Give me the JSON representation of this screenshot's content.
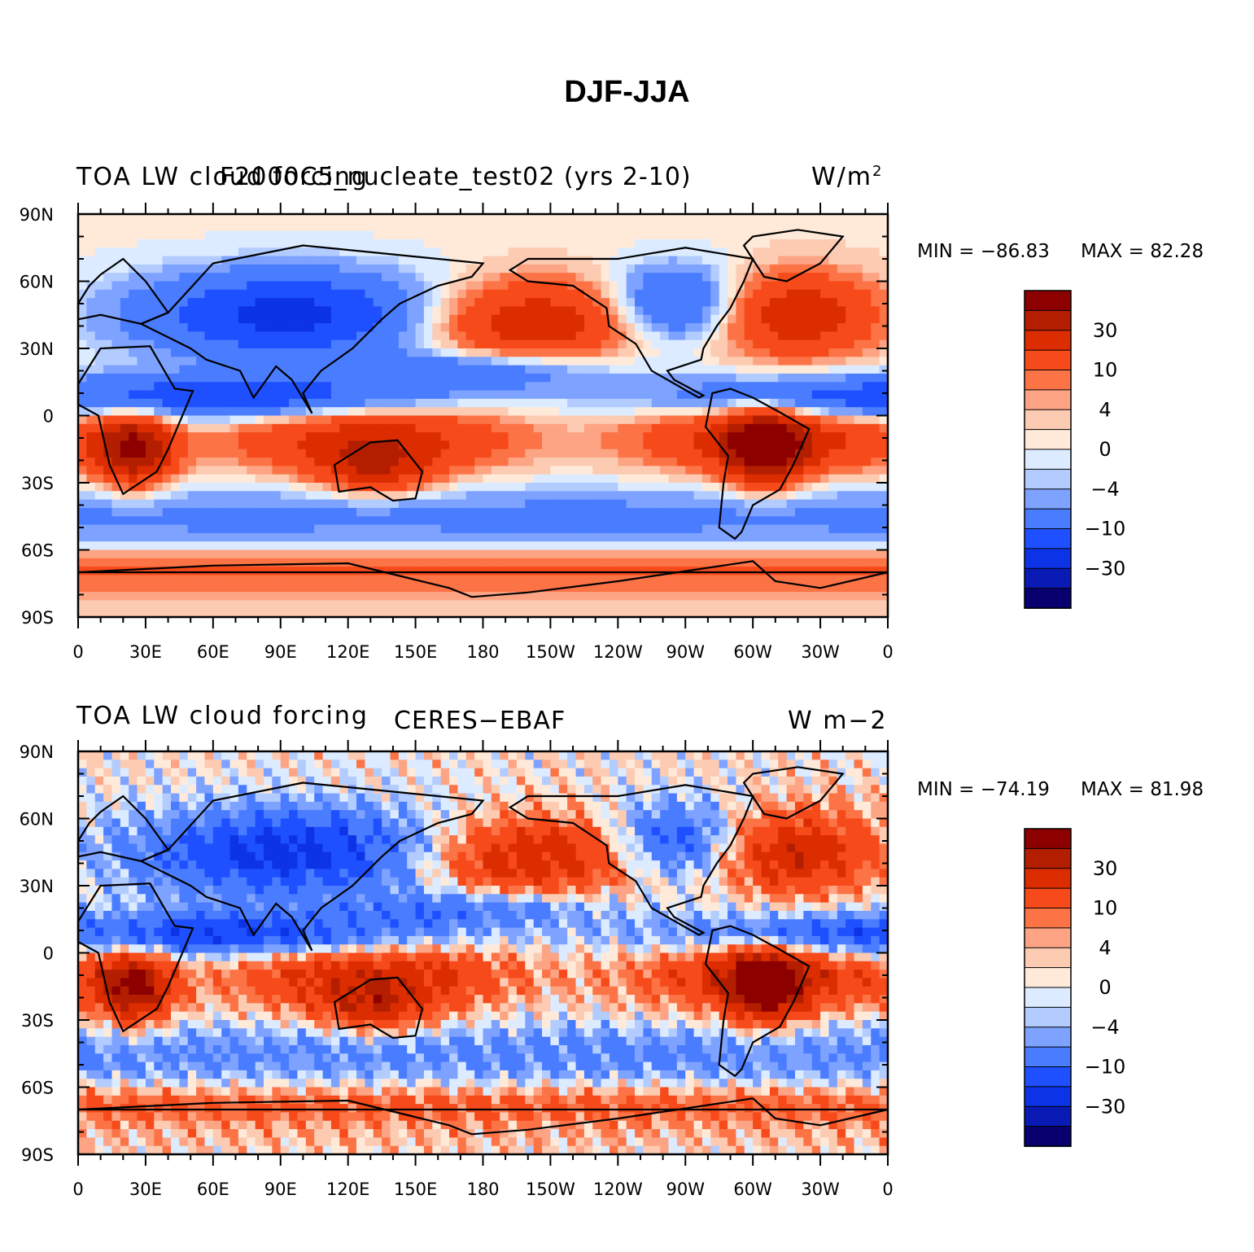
{
  "page_title": "DJF-JJA",
  "colors": {
    "levels": [
      "#08006e",
      "#0a1ab4",
      "#0c33e6",
      "#1e50ff",
      "#4a7cff",
      "#7ea2ff",
      "#b2ccff",
      "#dcebff",
      "#ffeada",
      "#fccbb2",
      "#fca484",
      "#fc7346",
      "#f64a1a",
      "#dc2d00",
      "#b41e00",
      "#8c0000"
    ],
    "coast": "#000000"
  },
  "chart_data": [
    {
      "type": "heatmap",
      "panel": "top",
      "left_string": "TOA LW cloud forcing",
      "center_string": "F2000C5_nucleate_test02 (yrs 2-10)",
      "right_string": "W/m",
      "right_superscript": "2",
      "min_label": "MIN = −86.83",
      "max_label": "MAX =  82.28",
      "min": -86.83,
      "max": 82.28,
      "xlim": [
        0,
        360
      ],
      "ylim": [
        -90,
        90
      ],
      "x_tick_labels": [
        "0",
        "30E",
        "60E",
        "90E",
        "120E",
        "150E",
        "180",
        "150W",
        "120W",
        "90W",
        "60W",
        "30W",
        "0"
      ],
      "y_tick_labels": [
        "90N",
        "60N",
        "30N",
        "0",
        "30S",
        "60S",
        "90S"
      ],
      "colorbar_labels": [
        "30",
        "10",
        "4",
        "0",
        "−4",
        "−10",
        "−30"
      ]
    },
    {
      "type": "heatmap",
      "panel": "bottom",
      "left_string": "TOA LW cloud forcing",
      "center_string": "CERES−EBAF",
      "right_string": "W m−2",
      "right_superscript": "",
      "min_label": "MIN = −74.19",
      "max_label": "MAX =  81.98",
      "min": -74.19,
      "max": 81.98,
      "xlim": [
        0,
        360
      ],
      "ylim": [
        -90,
        90
      ],
      "x_tick_labels": [
        "0",
        "30E",
        "60E",
        "90E",
        "120E",
        "150E",
        "180",
        "150W",
        "120W",
        "90W",
        "60W",
        "30W",
        "0"
      ],
      "y_tick_labels": [
        "90N",
        "60N",
        "30N",
        "0",
        "30S",
        "60S",
        "90S"
      ],
      "colorbar_labels": [
        "30",
        "10",
        "4",
        "0",
        "−4",
        "−10",
        "−30"
      ]
    }
  ]
}
